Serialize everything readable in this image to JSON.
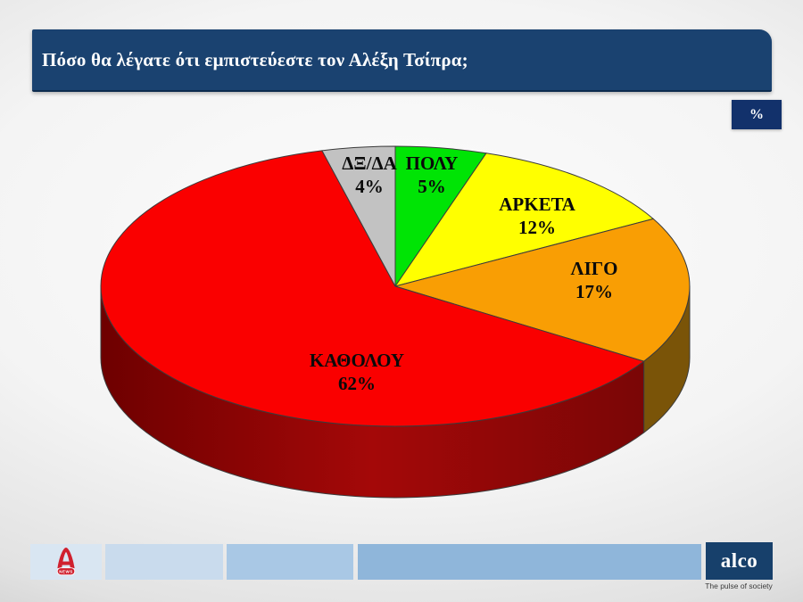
{
  "slide": {
    "title": "Πόσο θα λέγατε ότι εμπιστεύεστε τον Αλέξη Τσίπρα;",
    "unit_badge": "%"
  },
  "chart_data": {
    "type": "pie",
    "effect": "3d",
    "direction": "clockwise",
    "start_angle_deg": 0,
    "unit": "%",
    "question": "Πόσο θα λέγατε ότι εμπιστεύεστε τον Αλέξη Τσίπρα;",
    "slices": [
      {
        "label": "ΠΟΛΥ",
        "value": 5,
        "display": "5%",
        "color": "#00e405"
      },
      {
        "label": "ΑΡΚΕΤΑ",
        "value": 12,
        "display": "12%",
        "color": "#ffff00"
      },
      {
        "label": "ΛΙΓΟ",
        "value": 17,
        "display": "17%",
        "color": "#f99e04",
        "side_color": "#7a5408"
      },
      {
        "label": "ΚΑΘΟΛΟΥ",
        "value": 62,
        "display": "62%",
        "color": "#fa0000",
        "side_gradient": [
          "#6e0000",
          "#a40808",
          "#7a0606"
        ]
      },
      {
        "label": "ΔΞ/ΔΑ",
        "value": 4,
        "display": "4%",
        "color": "#c2c2c2"
      }
    ]
  },
  "footer": {
    "channel_logo": {
      "caption": "NEWS"
    },
    "alco": {
      "brand": "alco",
      "tagline": "The pulse of society"
    }
  },
  "colors": {
    "banner": "#1a4270",
    "badge": "#12316b",
    "footer_blues": [
      "#d9e6f2",
      "#c9dbed",
      "#a9c8e5",
      "#8fb6da"
    ],
    "alco_navy": "#17406b",
    "alpha_red": "#d0202e",
    "slice_outline": "#3b3b3b"
  }
}
